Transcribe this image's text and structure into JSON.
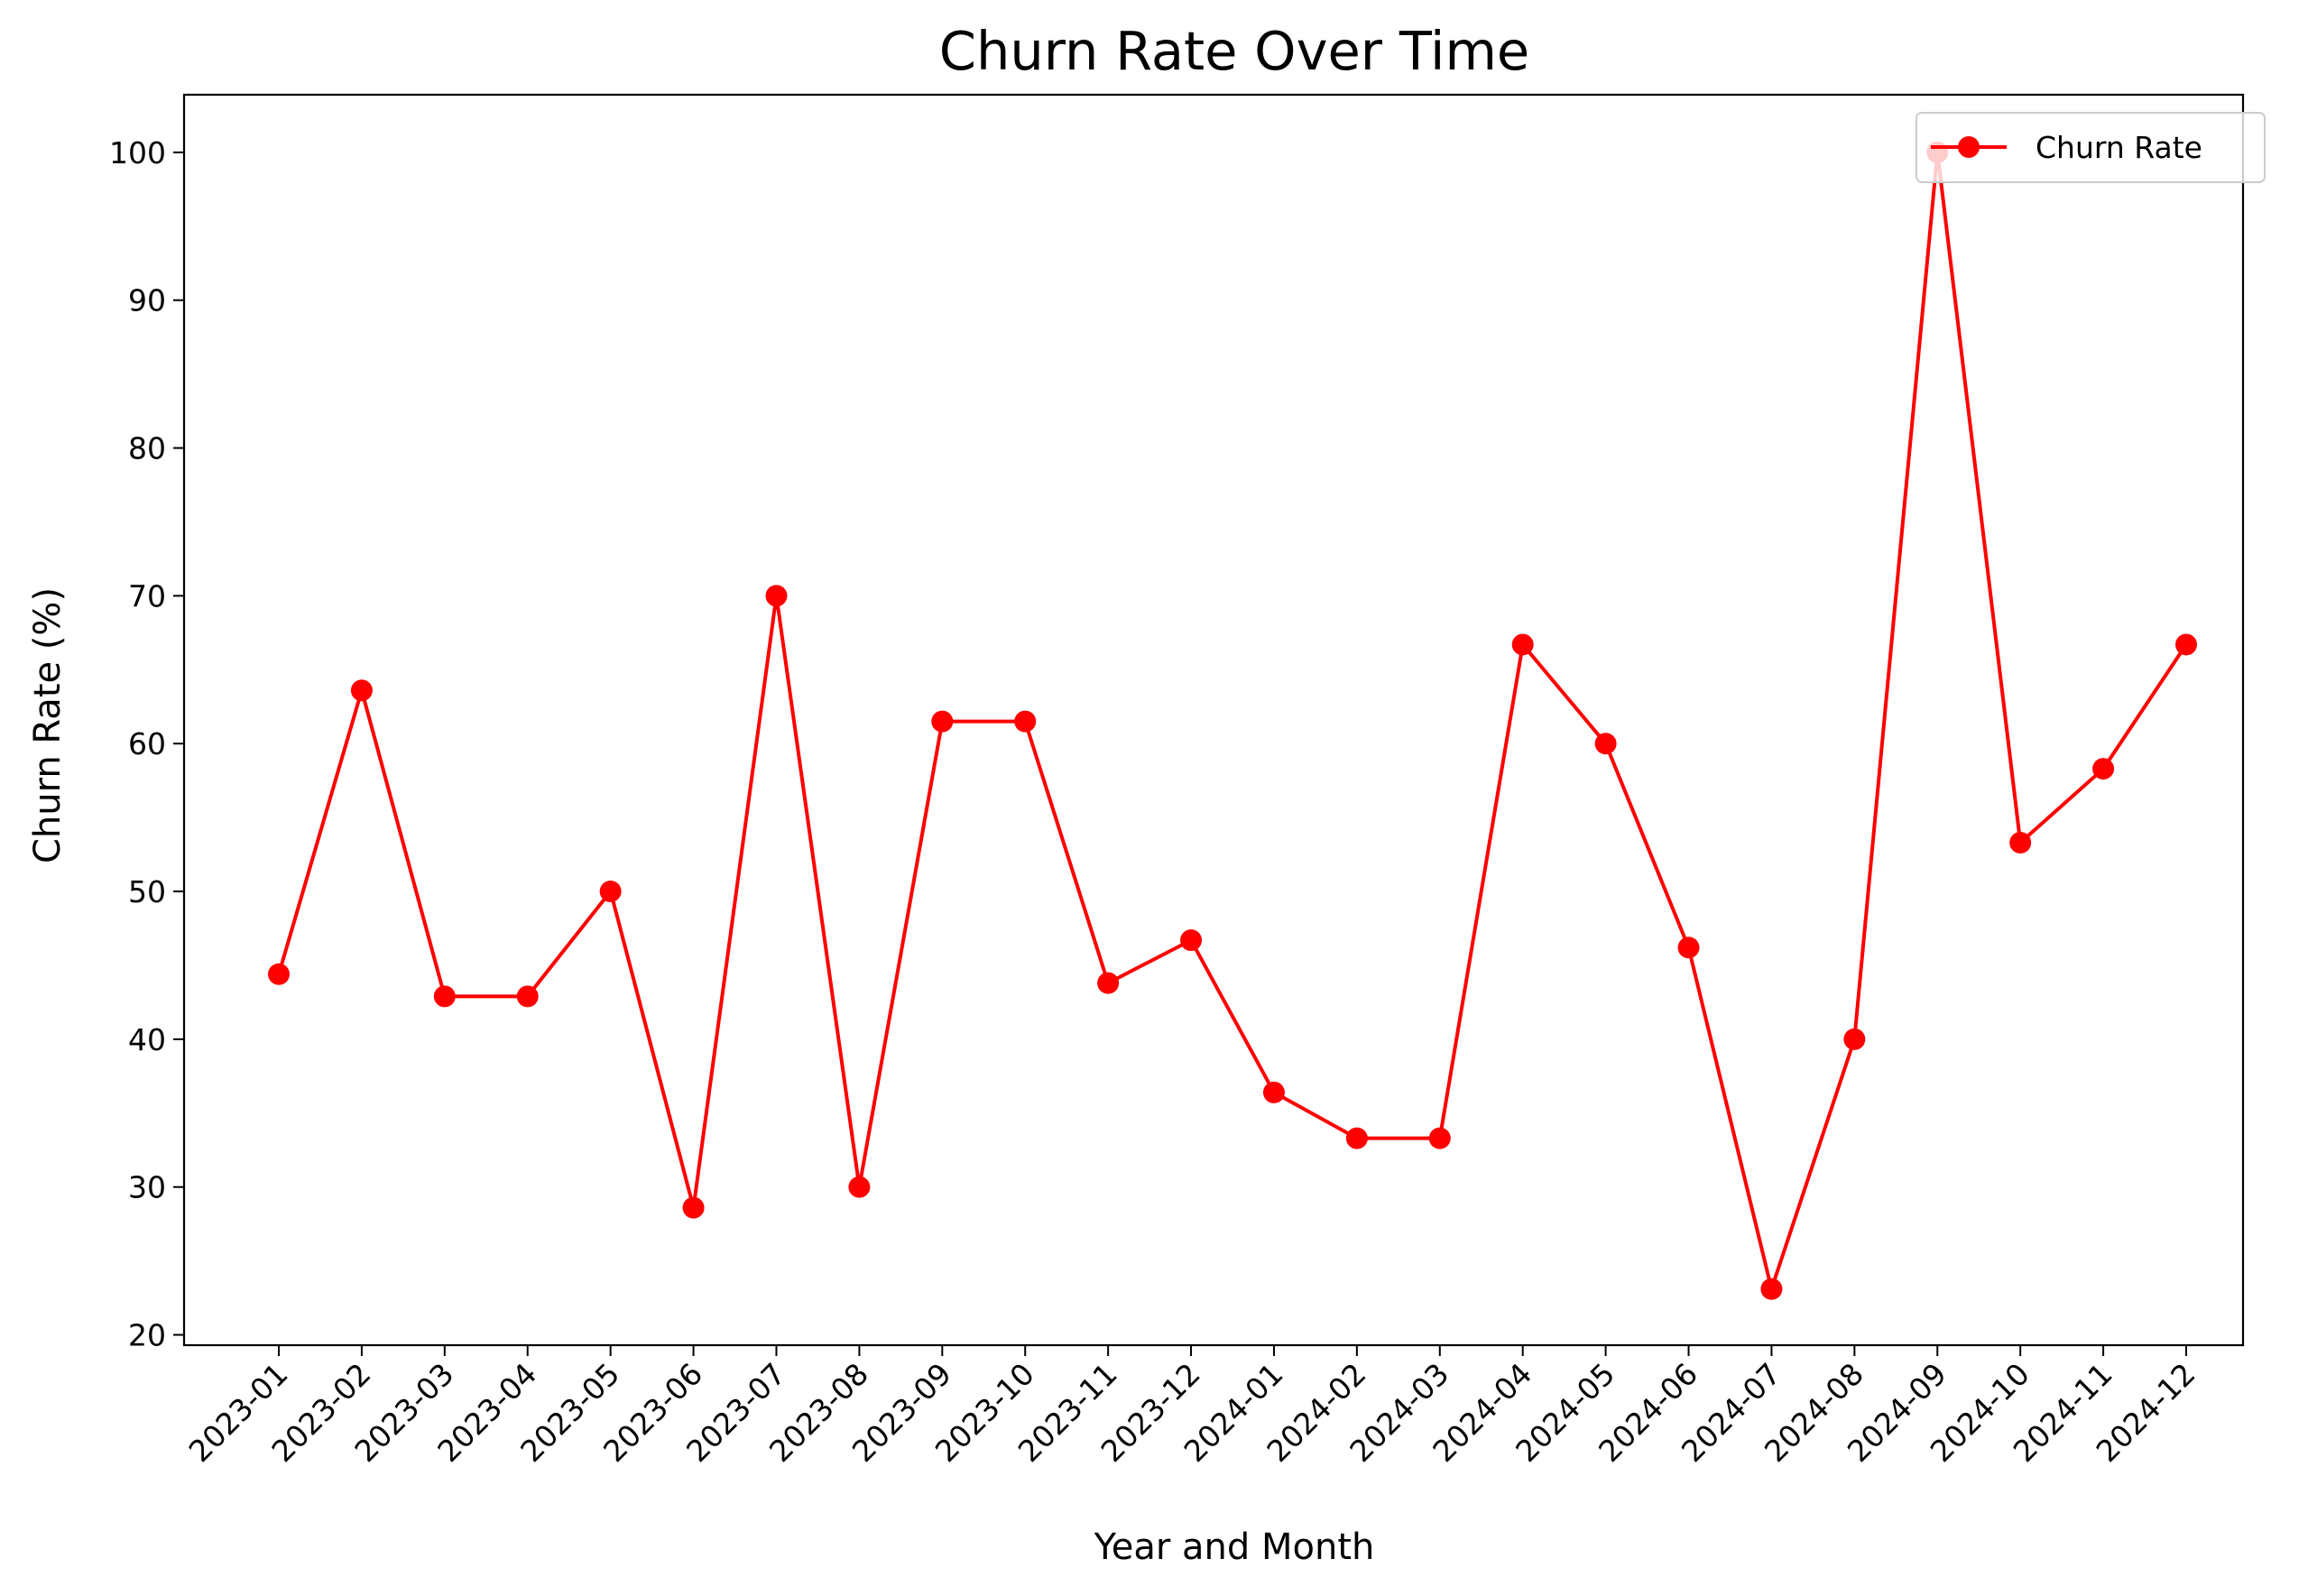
{
  "chart_data": {
    "type": "line",
    "title": "Churn Rate Over Time",
    "xlabel": "Year and Month",
    "ylabel": "Churn Rate (%)",
    "categories": [
      "2023-01",
      "2023-02",
      "2023-03",
      "2023-04",
      "2023-05",
      "2023-06",
      "2023-07",
      "2023-08",
      "2023-09",
      "2023-10",
      "2023-11",
      "2023-12",
      "2024-01",
      "2024-02",
      "2024-03",
      "2024-04",
      "2024-05",
      "2024-06",
      "2024-07",
      "2024-08",
      "2024-09",
      "2024-10",
      "2024-11",
      "2024-12"
    ],
    "yticks": [
      20,
      30,
      40,
      50,
      60,
      70,
      80,
      90,
      100
    ],
    "ylim": [
      19.3,
      103.9
    ],
    "grid": false,
    "legend_position": "top-right",
    "series": [
      {
        "name": "Churn Rate",
        "color": "#ff0000",
        "marker": "circle",
        "values": [
          44.4,
          63.6,
          42.9,
          42.9,
          50.0,
          28.6,
          70.0,
          30.0,
          61.5,
          61.5,
          43.8,
          46.7,
          36.4,
          33.3,
          33.3,
          66.7,
          60.0,
          46.2,
          23.1,
          40.0,
          100.0,
          53.3,
          58.3,
          66.7
        ]
      }
    ]
  }
}
